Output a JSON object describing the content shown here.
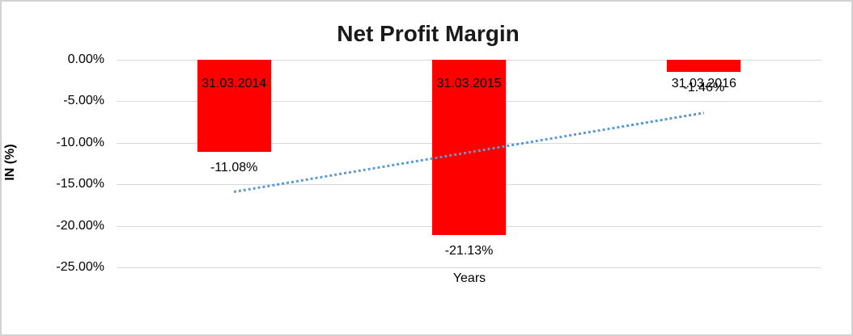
{
  "chart_data": {
    "type": "bar",
    "title": "Net Profit Margin",
    "xlabel": "Years",
    "ylabel": "IN (%)",
    "categories": [
      "31.03.2014",
      "31.03.2015",
      "31.03.2016"
    ],
    "values": [
      -11.08,
      -21.13,
      -1.46
    ],
    "data_labels": [
      "-11.08%",
      "-21.13%",
      "-1.46%"
    ],
    "ylim": [
      -25,
      0
    ],
    "yticks": [
      {
        "value": 0,
        "label": "0.00%"
      },
      {
        "value": -5,
        "label": "-5.00%"
      },
      {
        "value": -10,
        "label": "-10.00%"
      },
      {
        "value": -15,
        "label": "-15.00%"
      },
      {
        "value": -20,
        "label": "-20.00%"
      },
      {
        "value": -25,
        "label": "-25.00%"
      }
    ],
    "grid": "horizontal",
    "legend_position": "none",
    "bar_color": "#FF0000",
    "gridline_color": "#D9D9D9",
    "label_color": "#000000",
    "trendline": {
      "type": "linear",
      "style": "dotted",
      "color": "#5B9BD5",
      "start_pct": -15.9,
      "end_pct": -6.4
    }
  }
}
